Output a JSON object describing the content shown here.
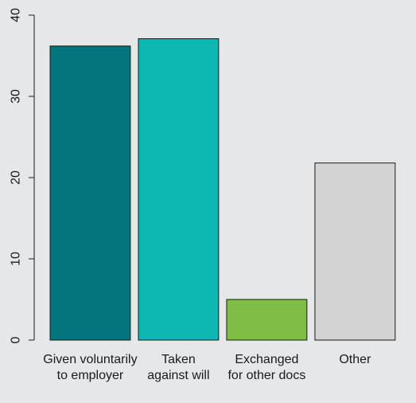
{
  "chart_data": {
    "type": "bar",
    "title": "",
    "xlabel": "",
    "ylabel": "",
    "categories": [
      [
        "Given voluntarily",
        "to employer"
      ],
      [
        "Taken",
        "against will"
      ],
      [
        "Exchanged",
        "for other docs"
      ],
      [
        "Other"
      ]
    ],
    "values": [
      36.2,
      37.1,
      5.0,
      21.8
    ],
    "colors": [
      "#04757c",
      "#0cb8b1",
      "#80bd46",
      "#d3d3d3"
    ],
    "ylim": [
      0,
      40
    ],
    "yticks": [
      "0",
      "10",
      "20",
      "30",
      "40"
    ],
    "grid": false,
    "legend": "none"
  }
}
